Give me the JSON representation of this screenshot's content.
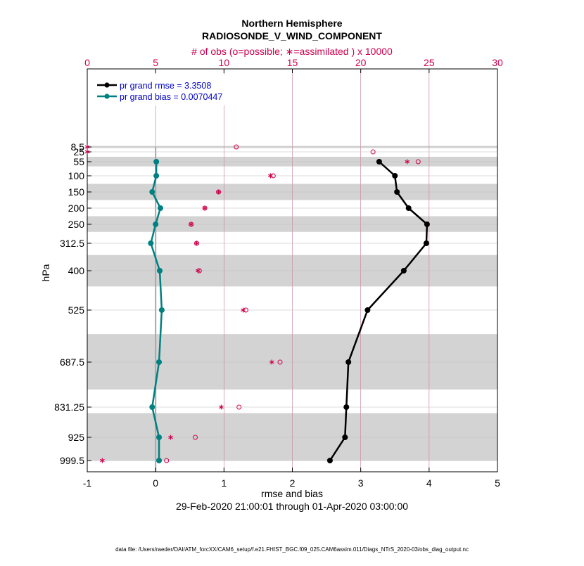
{
  "chart_data": {
    "type": "line",
    "title": "Northern Hemisphere",
    "subtitle": "RADIOSONDE_V_WIND_COMPONENT",
    "top_axis_label": "# of obs (o=possible; ∗=assimilated ) x 10000",
    "top_axis_ticks": [
      "0",
      "5",
      "10",
      "15",
      "20",
      "25",
      "30"
    ],
    "top_axis_range": [
      0,
      30
    ],
    "xlabel": "rmse and bias",
    "date_range": "29-Feb-2020 21:00:01 through 01-Apr-2020 03:00:00",
    "ylabel": "hPa",
    "xlim": [
      -1,
      5
    ],
    "x_ticks": [
      "-1",
      "0",
      "1",
      "2",
      "3",
      "4",
      "5"
    ],
    "levels": [
      "8.5",
      "25",
      "55",
      "100",
      "150",
      "200",
      "250",
      "312.5",
      "400",
      "525",
      "687.5",
      "831.25",
      "925",
      "999.5"
    ],
    "level_values": [
      8.5,
      25,
      55,
      100,
      150,
      200,
      250,
      312.5,
      400,
      525,
      687.5,
      831.25,
      925,
      999.5
    ],
    "shaded_bands": [
      [
        5,
        12
      ],
      [
        40,
        70
      ],
      [
        125,
        175
      ],
      [
        225,
        275
      ],
      [
        350,
        450
      ],
      [
        600,
        775
      ],
      [
        850,
        1000
      ]
    ],
    "zero_line": 0,
    "series": [
      {
        "name": "pr grand rmse = 3.3508",
        "color": "#000000",
        "levels": [
          55,
          100,
          150,
          200,
          250,
          312.5,
          400,
          525,
          687.5,
          831.25,
          925,
          999.5
        ],
        "values": [
          3.27,
          3.5,
          3.53,
          3.7,
          3.97,
          3.96,
          3.63,
          3.1,
          2.82,
          2.79,
          2.77,
          2.55
        ]
      },
      {
        "name": "pr grand bias = 0.0070447",
        "color": "#008080",
        "levels": [
          55,
          100,
          150,
          200,
          250,
          312.5,
          400,
          525,
          687.5,
          831.25,
          925,
          999.5
        ],
        "values": [
          0.01,
          0.01,
          -0.05,
          0.07,
          0.0,
          -0.07,
          0.06,
          0.09,
          0.05,
          -0.05,
          0.05,
          0.05
        ]
      }
    ],
    "obs_possible": {
      "levels": [
        8.5,
        25,
        55,
        100,
        150,
        200,
        250,
        312.5,
        400,
        525,
        687.5,
        831.25,
        925,
        999.5
      ],
      "values": [
        10.9,
        20.9,
        24.2,
        13.6,
        9.6,
        8.6,
        7.6,
        8.0,
        8.2,
        11.6,
        14.1,
        11.1,
        7.9,
        5.8
      ]
    },
    "obs_assimilated": {
      "levels": [
        8.5,
        25,
        55,
        100,
        150,
        200,
        250,
        312.5,
        400,
        525,
        687.5,
        831.25,
        925,
        999.5
      ],
      "values": [
        0.0,
        0.0,
        23.4,
        13.4,
        9.6,
        8.6,
        7.6,
        8.0,
        8.1,
        11.4,
        13.5,
        9.8,
        6.1,
        1.1
      ]
    }
  },
  "footer": "data file: /Users/raeder/DAI/ATM_forcXX/CAM6_setup/f.e21.FHIST_BGC.f09_025.CAM6assim.011/Diags_NTrS_2020-03/obs_diag_output.nc",
  "colors": {
    "rmse": "#000000",
    "bias": "#008080",
    "obs": "#d0004e",
    "legend_text": "#0000cc",
    "band": "#d3d3d3",
    "grid": "#c98aa0"
  }
}
